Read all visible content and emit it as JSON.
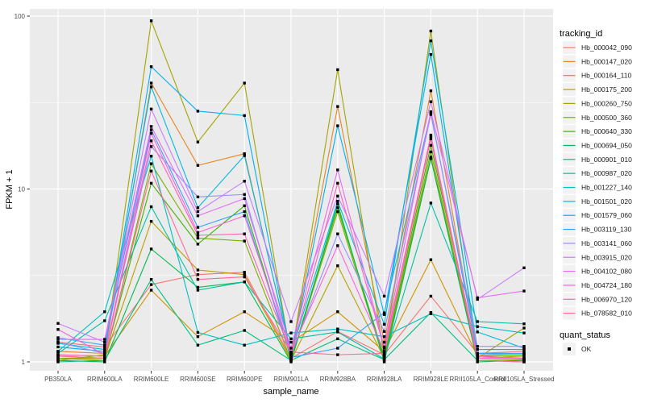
{
  "chart_data": {
    "type": "line",
    "title": "",
    "xlabel": "sample_name",
    "ylabel": "FPKM + 1",
    "y_scale": "log10",
    "ylim": [
      1,
      100
    ],
    "y_ticks": [
      1,
      10,
      100
    ],
    "y_tick_labels": [
      "1",
      "10",
      "100"
    ],
    "y_minor_ticks": [
      3.1623,
      31.623
    ],
    "grid": "white-on-gray",
    "panel_bg": "#EBEBEB",
    "grid_color": "#FFFFFF",
    "axis_text_color": "#4D4D4D",
    "axis_title_color": "#000000",
    "point_color": "#000000",
    "point_shape": "square",
    "legend": {
      "position": "right",
      "color_title": "tracking_id",
      "shape_title": "quant_status",
      "quant_label": "OK",
      "key_bg": "#F2F2F2"
    },
    "categories": [
      "PB350LA",
      "RRIM600LA",
      "RRIM600LE",
      "RRIM600SE",
      "RRIM600PE",
      "RRIM901LA",
      "RRIM928BA",
      "RRIM928LA",
      "RRIM928LE",
      "RRII105LA_Control",
      "RRII105LA_Stressed"
    ],
    "series": [
      {
        "name": "Hb_000042_090",
        "color": "#F8766D",
        "values": [
          1.3,
          1.22,
          2.8,
          3.2,
          3.3,
          1.05,
          1.5,
          1.1,
          2.4,
          1.12,
          1.15
        ]
      },
      {
        "name": "Hb_000147_020",
        "color": "#E88526",
        "values": [
          1.15,
          1.12,
          41,
          13.7,
          16,
          1.1,
          30,
          1.3,
          37,
          1.1,
          1.12
        ]
      },
      {
        "name": "Hb_000164_110",
        "color": "#D39200",
        "values": [
          1.1,
          1.08,
          2.6,
          1.4,
          1.95,
          1.3,
          1.95,
          1.15,
          3.9,
          1.08,
          1.05
        ]
      },
      {
        "name": "Hb_000175_200",
        "color": "#B79F00",
        "values": [
          1.05,
          1.05,
          6.5,
          3.4,
          3.2,
          1.02,
          3.6,
          1.05,
          15.3,
          1.05,
          1.08
        ]
      },
      {
        "name": "Hb_000260_750",
        "color": "#A3A500",
        "values": [
          1.02,
          1.1,
          94,
          18.7,
          41,
          1.05,
          49,
          1.08,
          82,
          1.05,
          1.57
        ]
      },
      {
        "name": "Hb_000500_360",
        "color": "#7CAE00",
        "values": [
          1.05,
          1.02,
          14,
          5.2,
          5.0,
          1.02,
          7.4,
          1.02,
          16.4,
          1.02,
          1.03
        ]
      },
      {
        "name": "Hb_000640_330",
        "color": "#39B600",
        "values": [
          1.08,
          1.05,
          10.8,
          4.8,
          8.0,
          1.04,
          7.8,
          1.06,
          17.9,
          1.08,
          1.1
        ]
      },
      {
        "name": "Hb_000694_050",
        "color": "#00BB4E",
        "values": [
          1.02,
          1.0,
          4.5,
          2.7,
          2.9,
          1.0,
          8.2,
          1.0,
          15.0,
          1.0,
          1.02
        ]
      },
      {
        "name": "Hb_000901_010",
        "color": "#00BF7D",
        "values": [
          1.0,
          1.02,
          3.0,
          1.25,
          1.52,
          1.02,
          1.36,
          1.03,
          1.93,
          1.02,
          1.0
        ]
      },
      {
        "name": "Hb_000987_020",
        "color": "#00C1A3",
        "values": [
          1.12,
          1.73,
          7.9,
          2.6,
          2.9,
          1.36,
          1.49,
          1.04,
          8.3,
          1.71,
          1.66
        ]
      },
      {
        "name": "Hb_001227_140",
        "color": "#00BFC4",
        "values": [
          1.15,
          1.95,
          15.5,
          1.48,
          1.25,
          1.47,
          1.55,
          1.4,
          1.9,
          1.6,
          1.47
        ]
      },
      {
        "name": "Hb_001501_020",
        "color": "#00BAE0",
        "values": [
          1.28,
          1.18,
          39,
          7.8,
          15.6,
          1.12,
          8.5,
          1.65,
          72,
          1.49,
          1.2
        ]
      },
      {
        "name": "Hb_001579_060",
        "color": "#00B0F6",
        "values": [
          1.22,
          1.15,
          51,
          28.2,
          26.6,
          1.08,
          23.2,
          1.88,
          60,
          1.18,
          1.18
        ]
      },
      {
        "name": "Hb_003119_130",
        "color": "#35A2FF",
        "values": [
          1.38,
          1.25,
          22,
          6.0,
          7.4,
          1.06,
          1.2,
          1.92,
          27.6,
          1.12,
          1.12
        ]
      },
      {
        "name": "Hb_003141_060",
        "color": "#9590FF",
        "values": [
          1.3,
          1.12,
          17.6,
          9.0,
          9.3,
          1.1,
          5.5,
          1.5,
          27,
          1.23,
          1.23
        ]
      },
      {
        "name": "Hb_003915_020",
        "color": "#C77CFF",
        "values": [
          1.67,
          1.3,
          29,
          7.4,
          11.1,
          1.71,
          9.1,
          2.4,
          32,
          2.3,
          3.5
        ]
      },
      {
        "name": "Hb_004102_080",
        "color": "#E76BF3",
        "values": [
          1.35,
          1.35,
          23,
          7.0,
          8.8,
          1.2,
          12.9,
          1.22,
          28,
          2.35,
          2.57
        ]
      },
      {
        "name": "Hb_004724_180",
        "color": "#FA62DB",
        "values": [
          1.54,
          1.1,
          21,
          5.6,
          7.0,
          1.14,
          4.7,
          1.15,
          20.5,
          1.05,
          1.05
        ]
      },
      {
        "name": "Hb_006970_120",
        "color": "#FF62BC",
        "values": [
          1.1,
          1.08,
          19,
          5.4,
          5.5,
          1.12,
          10.8,
          1.2,
          20,
          1.08,
          1.04
        ]
      },
      {
        "name": "Hb_078582_010",
        "color": "#FF6A98",
        "values": [
          1.08,
          1.05,
          12.7,
          3.0,
          3.1,
          1.14,
          1.1,
          1.12,
          19.5,
          1.02,
          1.0
        ]
      }
    ]
  }
}
